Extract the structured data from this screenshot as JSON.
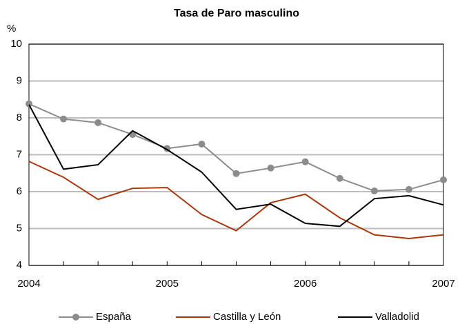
{
  "chart_data": {
    "type": "line",
    "title": "Tasa de Paro masculino",
    "y_label": "%",
    "categories": [
      "2004",
      null,
      null,
      null,
      "2005",
      null,
      null,
      null,
      "2006",
      null,
      null,
      null,
      "2007"
    ],
    "series": [
      {
        "name": "España",
        "color": "#8c8c8c",
        "marker": true,
        "values": [
          8.38,
          7.97,
          7.87,
          7.55,
          7.17,
          7.29,
          6.49,
          6.64,
          6.81,
          6.36,
          6.02,
          6.06,
          6.32
        ]
      },
      {
        "name": "Castilla y León",
        "color": "#a8380c",
        "marker": false,
        "values": [
          6.82,
          6.39,
          5.79,
          6.09,
          6.11,
          5.38,
          4.94,
          5.7,
          5.93,
          5.29,
          4.83,
          4.73,
          4.83
        ]
      },
      {
        "name": "Valladolid",
        "color": "#000000",
        "marker": false,
        "values": [
          8.36,
          6.61,
          6.73,
          7.65,
          7.14,
          6.53,
          5.52,
          5.66,
          5.14,
          5.06,
          5.81,
          5.89,
          5.64
        ]
      }
    ],
    "ylim": [
      4,
      10
    ],
    "yticks": [
      4,
      5,
      6,
      7,
      8,
      9,
      10
    ],
    "grid": true,
    "legend": "bottom"
  }
}
